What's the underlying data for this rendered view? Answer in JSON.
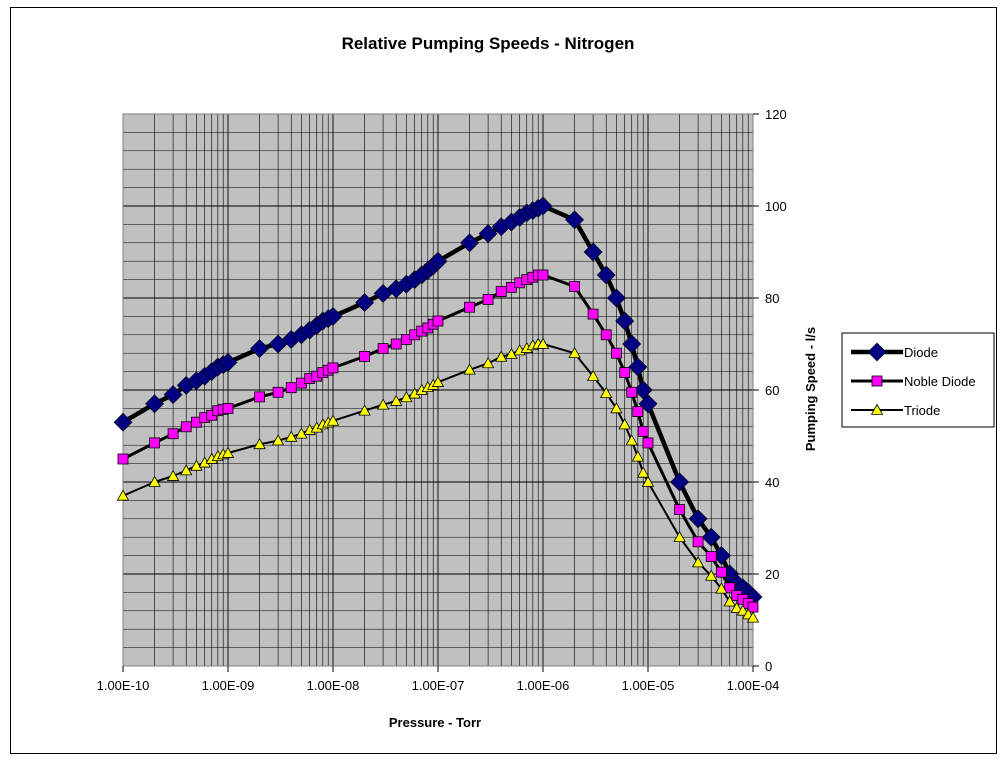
{
  "chart_data": {
    "type": "line",
    "title": "Relative Pumping Speeds - Nitrogen",
    "xlabel": "Pressure - Torr",
    "ylabel": "Pumping Speed - l/s",
    "x_scale": "log",
    "xlim": [
      1e-10,
      0.0001
    ],
    "ylim": [
      0,
      120
    ],
    "y_ticks": [
      0,
      20,
      40,
      60,
      80,
      100,
      120
    ],
    "x_ticks": [
      1e-10,
      1e-09,
      1e-08,
      1e-07,
      1e-06,
      1e-05,
      0.0001
    ],
    "x_tick_labels": [
      "1.00E-10",
      "1.00E-09",
      "1.00E-08",
      "1.00E-07",
      "1.00E-06",
      "1.00E-05",
      "1.00E-04"
    ],
    "y_axis_position": "right",
    "grid": true,
    "plot_background": "#c0c0c0",
    "legend_position": "right",
    "x": [
      1e-10,
      2e-10,
      3e-10,
      4e-10,
      5e-10,
      6e-10,
      7e-10,
      8e-10,
      9e-10,
      1e-09,
      2e-09,
      3e-09,
      4e-09,
      5e-09,
      6e-09,
      7e-09,
      8e-09,
      9e-09,
      1e-08,
      2e-08,
      3e-08,
      4e-08,
      5e-08,
      6e-08,
      7e-08,
      8e-08,
      9e-08,
      1e-07,
      2e-07,
      3e-07,
      4e-07,
      5e-07,
      6e-07,
      7e-07,
      8e-07,
      9e-07,
      1e-06,
      2e-06,
      3e-06,
      4e-06,
      5e-06,
      6e-06,
      7e-06,
      8e-06,
      9e-06,
      1e-05,
      2e-05,
      3e-05,
      4e-05,
      5e-05,
      6e-05,
      7e-05,
      8e-05,
      9e-05,
      0.0001
    ],
    "series": [
      {
        "name": "Diode",
        "color": "#000080",
        "marker": "diamond",
        "values": [
          53,
          57,
          59,
          61,
          62,
          63,
          64,
          65,
          65.5,
          66,
          69,
          70,
          71,
          72,
          73,
          74,
          75,
          75.5,
          76,
          79,
          81,
          82,
          83,
          84,
          85,
          86,
          87,
          88,
          92,
          94,
          95.5,
          96.5,
          97.5,
          98.5,
          99,
          99.5,
          100,
          97,
          90,
          85,
          80,
          75,
          70,
          65,
          60,
          57,
          40,
          32,
          28,
          24,
          20,
          18,
          17,
          16,
          15
        ]
      },
      {
        "name": "Noble Diode",
        "color": "#ff00ff",
        "marker": "square",
        "values": [
          45,
          48.5,
          50.5,
          52,
          53,
          54,
          54.5,
          55.5,
          55.8,
          56,
          58.5,
          59.5,
          60.5,
          61.5,
          62.5,
          63,
          63.8,
          64.3,
          64.8,
          67.3,
          69,
          70,
          71,
          72,
          72.8,
          73.5,
          74.3,
          75,
          78,
          79.7,
          81.4,
          82.3,
          83.3,
          84,
          84.5,
          85,
          85,
          82.5,
          76.5,
          72,
          68,
          63.8,
          59.5,
          55.3,
          51,
          48.5,
          34,
          27,
          23.8,
          20.4,
          17,
          15.3,
          14.5,
          13.6,
          12.8
        ]
      },
      {
        "name": "Triode",
        "color": "#ffff00",
        "marker": "triangle",
        "values": [
          37,
          40,
          41.3,
          42.5,
          43.5,
          44.2,
          45,
          45.6,
          46,
          46.3,
          48.2,
          49,
          49.8,
          50.5,
          51.3,
          51.8,
          52.5,
          52.9,
          53.3,
          55.5,
          56.8,
          57.6,
          58.4,
          59.2,
          60,
          60.6,
          61.1,
          61.7,
          64.4,
          65.8,
          67.2,
          67.8,
          68.6,
          69.1,
          69.7,
          70,
          70,
          68,
          63,
          59.3,
          56,
          52.5,
          49,
          45.5,
          42,
          40,
          28,
          22.5,
          19.6,
          16.8,
          14,
          12.6,
          12,
          11.2,
          10.5
        ]
      }
    ]
  }
}
